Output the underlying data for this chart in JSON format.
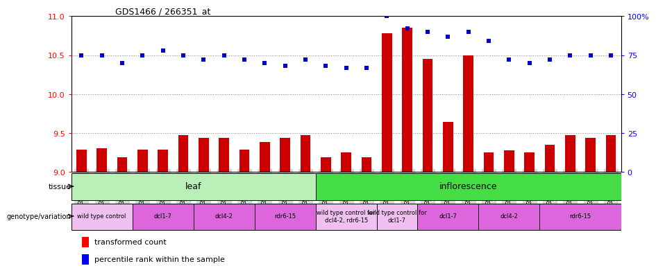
{
  "title": "GDS1466 / 266351_at",
  "samples": [
    "GSM65917",
    "GSM65918",
    "GSM65919",
    "GSM65926",
    "GSM65927",
    "GSM65928",
    "GSM65920",
    "GSM65921",
    "GSM65922",
    "GSM65923",
    "GSM65924",
    "GSM65925",
    "GSM65929",
    "GSM65930",
    "GSM65931",
    "GSM65938",
    "GSM65939",
    "GSM65940",
    "GSM65941",
    "GSM65942",
    "GSM65943",
    "GSM65932",
    "GSM65933",
    "GSM65934",
    "GSM65935",
    "GSM65936",
    "GSM65937"
  ],
  "bar_values": [
    9.29,
    9.3,
    9.19,
    9.29,
    9.29,
    9.47,
    9.44,
    9.44,
    9.29,
    9.38,
    9.44,
    9.47,
    9.19,
    9.25,
    9.19,
    10.78,
    10.85,
    10.45,
    9.64,
    10.5,
    9.25,
    9.28,
    9.25,
    9.35,
    9.47,
    9.44,
    9.47
  ],
  "percentile_values": [
    75,
    75,
    70,
    75,
    78,
    75,
    72,
    75,
    72,
    70,
    68,
    72,
    68,
    67,
    67,
    100,
    92,
    90,
    87,
    90,
    84,
    72,
    70,
    72,
    75,
    75,
    75
  ],
  "ylim_left": [
    9.0,
    11.0
  ],
  "ylim_right": [
    0,
    100
  ],
  "yticks_left": [
    9.0,
    9.5,
    10.0,
    10.5,
    11.0
  ],
  "yticks_right": [
    0,
    25,
    50,
    75,
    100
  ],
  "ytick_labels_right": [
    "0",
    "25",
    "50",
    "75",
    "100%"
  ],
  "tissue_groups": [
    {
      "label": "leaf",
      "start": 0,
      "end": 11,
      "color": "#b8f0b8"
    },
    {
      "label": "inflorescence",
      "start": 12,
      "end": 26,
      "color": "#44dd44"
    }
  ],
  "genotype_groups": [
    {
      "label": "wild type control",
      "start": 0,
      "end": 2,
      "color": "#f0c0f0"
    },
    {
      "label": "dcl1-7",
      "start": 3,
      "end": 5,
      "color": "#dd66dd"
    },
    {
      "label": "dcl4-2",
      "start": 6,
      "end": 8,
      "color": "#dd66dd"
    },
    {
      "label": "rdr6-15",
      "start": 9,
      "end": 11,
      "color": "#dd66dd"
    },
    {
      "label": "wild type control for\ndcl4-2, rdr6-15",
      "start": 12,
      "end": 14,
      "color": "#f0c0f0"
    },
    {
      "label": "wild type control for\ndcl1-7",
      "start": 15,
      "end": 16,
      "color": "#f0c0f0"
    },
    {
      "label": "dcl1-7",
      "start": 17,
      "end": 19,
      "color": "#dd66dd"
    },
    {
      "label": "dcl4-2",
      "start": 20,
      "end": 22,
      "color": "#dd66dd"
    },
    {
      "label": "rdr6-15",
      "start": 23,
      "end": 26,
      "color": "#dd66dd"
    }
  ],
  "bar_color": "#CC0000",
  "dot_color": "#0000CC",
  "grid_color": "#888888",
  "background_color": "#ffffff",
  "xticklabel_bg": "#d8d8d8"
}
